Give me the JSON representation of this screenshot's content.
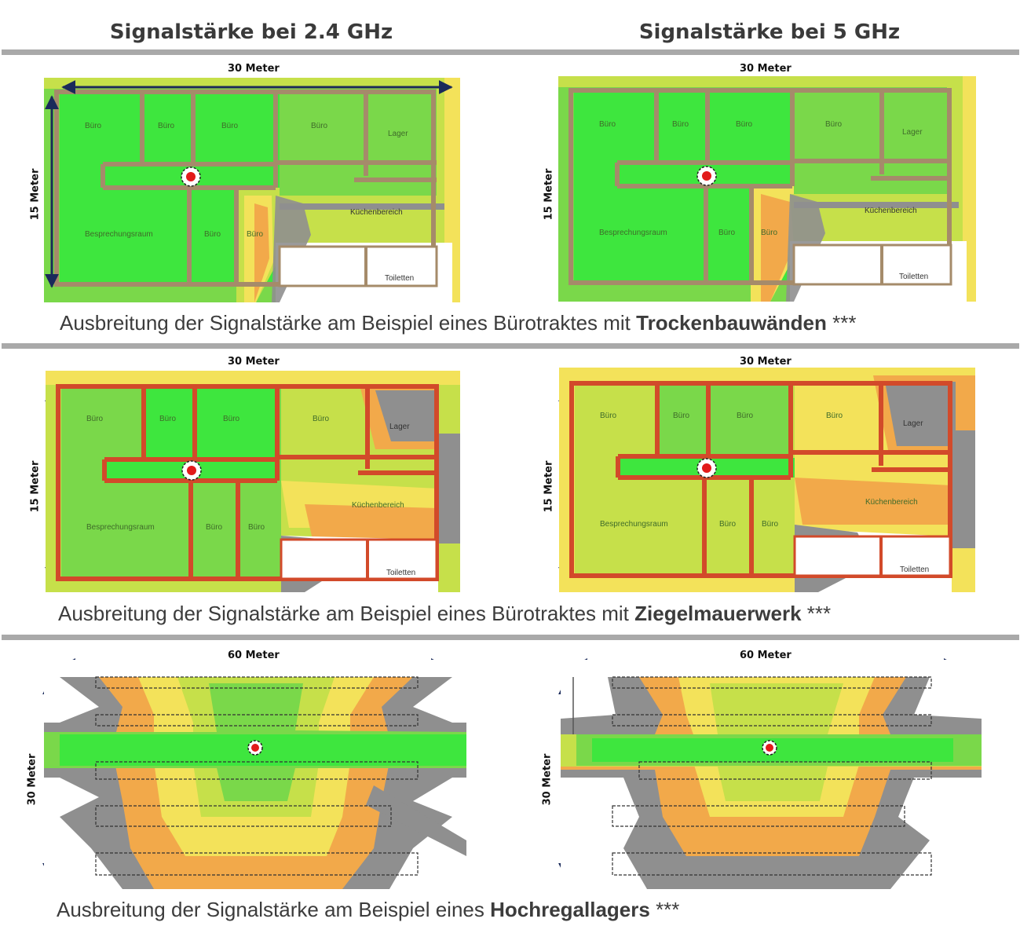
{
  "columns": {
    "left_title": "Signalstärke bei 2.4 GHz",
    "right_title": "Signalstärke bei 5 GHz"
  },
  "office_dims": {
    "width": "30 Meter",
    "height": "15 Meter"
  },
  "warehouse_dims": {
    "width": "60 Meter",
    "height": "30 Meter"
  },
  "rooms": {
    "buero": "Büro",
    "lager": "Lager",
    "kueche": "Küchenbereich",
    "besprechung": "Besprechungsraum",
    "toiletten": "Toiletten"
  },
  "captions": {
    "row1": {
      "prefix": "Ausbreitung der Signalstärke am Beispiel eines Bürotraktes mit ",
      "bold": "Trockenbauwänden",
      "suffix": " ***"
    },
    "row2": {
      "prefix": "Ausbreitung der Signalstärke am Beispiel eines Bürotraktes mit ",
      "bold": "Ziegelmauerwerk",
      "suffix": " ***"
    },
    "row3": {
      "prefix": "Ausbreitung der Signalstärke am Beispiel eines ",
      "bold": "Hochregallagers",
      "suffix": " ***"
    }
  },
  "colors": {
    "strong": "#3ee63e",
    "good": "#7ad84a",
    "medium": "#c6e04a",
    "weak": "#f3e25a",
    "poor": "#f2a94a",
    "none": "#8f8f8f",
    "drywall": "#a58b6a",
    "brick": "#d24a2a",
    "access_point": "#e21a1a"
  }
}
